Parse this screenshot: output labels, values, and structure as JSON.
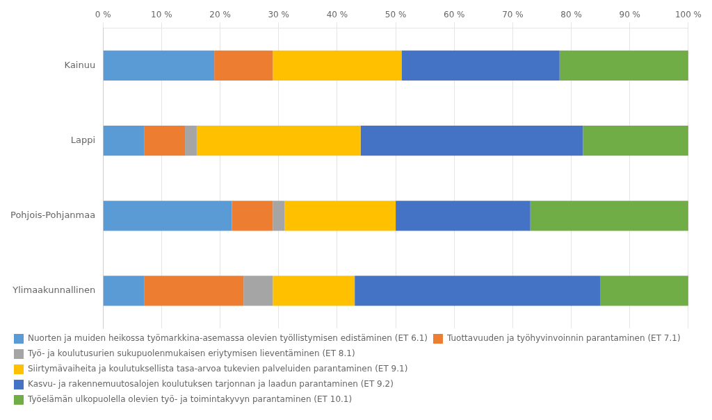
{
  "chart_data": {
    "type": "bar",
    "orientation": "horizontal",
    "stacked": true,
    "categories": [
      "Kainuu",
      "Lappi",
      "Pohjois-Pohjanmaa",
      "Ylimaakunnallinen"
    ],
    "series": [
      {
        "name": "Nuorten ja muiden heikossa työmarkkina-asemassa olevien työllistymisen edistäminen (ET 6.1)",
        "color": "#5B9BD5",
        "values": [
          19,
          7,
          22,
          7
        ]
      },
      {
        "name": "Tuottavuuden ja työhyvinvoinnin parantaminen (ET 7.1)",
        "color": "#ED7D31",
        "values": [
          10,
          7,
          7,
          17
        ]
      },
      {
        "name": "Työ- ja koulutusurien sukupuolenmukaisen eriytymisen lieventäminen (ET 8.1)",
        "color": "#A5A5A5",
        "values": [
          0,
          2,
          2,
          5
        ]
      },
      {
        "name": "Siirtymävaiheita ja koulutuksellista tasa-arvoa tukevien palveluiden parantaminen (ET 9.1)",
        "color": "#FFC000",
        "values": [
          22,
          28,
          19,
          14
        ]
      },
      {
        "name": "Kasvu- ja rakennemuutosalojen koulutuksen tarjonnan ja laadun parantaminen (ET 9.2)",
        "color": "#4472C4",
        "values": [
          27,
          38,
          23,
          42
        ]
      },
      {
        "name": "Työelämän ulkopuolella olevien työ- ja toimintakyvyn parantaminen (ET 10.1)",
        "color": "#70AD47",
        "values": [
          22,
          18,
          27,
          15
        ]
      }
    ],
    "xlim": [
      0,
      100
    ],
    "xticks": [
      {
        "value": 0,
        "label": "0 %"
      },
      {
        "value": 10,
        "label": "10 %"
      },
      {
        "value": 20,
        "label": "20 %"
      },
      {
        "value": 30,
        "label": "30 %"
      },
      {
        "value": 40,
        "label": "40 %"
      },
      {
        "value": 50,
        "label": "50 %"
      },
      {
        "value": 60,
        "label": "60 %"
      },
      {
        "value": 70,
        "label": "70 %"
      },
      {
        "value": 80,
        "label": "80 %"
      },
      {
        "value": 90,
        "label": "90 %"
      },
      {
        "value": 100,
        "label": "100 %"
      }
    ],
    "grid": true,
    "legend": "bottom"
  }
}
